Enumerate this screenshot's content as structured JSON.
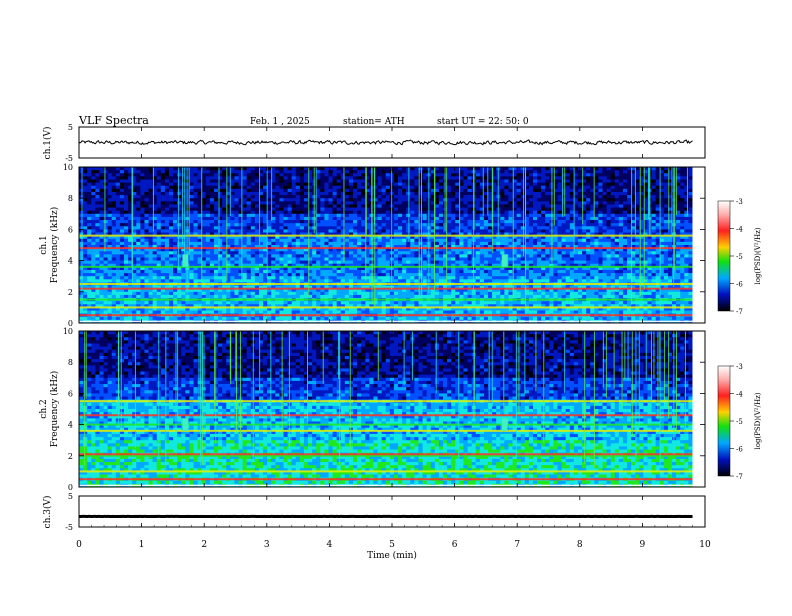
{
  "header": {
    "title": "VLF  Spectra",
    "date": "Feb. 1  , 2025",
    "station": "station= ATH",
    "start": "start  UT  =    22: 50: 0"
  },
  "colorbar": {
    "label": "log(PSD)(V²/Hz)",
    "ticks": [
      "-3",
      "-4",
      "-5",
      "-6",
      "-7"
    ],
    "colors": [
      "#ffffff",
      "#ff3030",
      "#ffd400",
      "#19e619",
      "#00a0ff",
      "#0010c8",
      "#000000"
    ]
  },
  "chart_data": [
    {
      "type": "line",
      "name": "ch1-waveform",
      "ylabel": "ch.1(V)",
      "ylim": [
        -5,
        5
      ],
      "y_ticks": [
        "5",
        "-5"
      ],
      "xlim": [
        0,
        10
      ],
      "x_data_range": [
        0,
        9.8
      ],
      "description_values": {
        "baseline": 0.0,
        "amplitude": 0.5
      }
    },
    {
      "type": "heatmap",
      "name": "ch1-spectrogram",
      "ylabel": "ch.1\nFrequency (kHz)",
      "ylim": [
        0,
        10
      ],
      "y_ticks": [
        "0",
        "2",
        "4",
        "6",
        "8",
        "10"
      ],
      "xlim": [
        0,
        10
      ],
      "x_data_range": [
        0,
        9.8
      ],
      "zlim": [
        -7,
        -3
      ],
      "zlabel": "log(PSD)(V²/Hz)",
      "bands_khz": [
        0.5,
        1.0,
        1.5,
        2.2,
        2.5,
        3.6,
        4.8,
        5.6
      ],
      "bursts_min": [
        1.7,
        6.8
      ]
    },
    {
      "type": "heatmap",
      "name": "ch2-spectrogram",
      "ylabel": "ch.2\nFrequency (kHz)",
      "ylim": [
        0,
        10
      ],
      "y_ticks": [
        "0",
        "2",
        "4",
        "6",
        "8",
        "10"
      ],
      "xlim": [
        0,
        10
      ],
      "x_data_range": [
        0,
        9.8
      ],
      "zlim": [
        -7,
        -3
      ],
      "zlabel": "log(PSD)(V²/Hz)",
      "bands_khz": [
        0.5,
        1.0,
        2.0,
        2.1,
        3.6,
        4.0,
        4.6,
        5.5
      ],
      "bursts_min": [
        1.7,
        6.8
      ]
    },
    {
      "type": "line",
      "name": "ch3-waveform",
      "ylabel": "ch.3(V)",
      "ylim": [
        -5,
        5
      ],
      "y_ticks": [
        "5",
        "-5"
      ],
      "xlim": [
        0,
        10
      ],
      "x_data_range": [
        0,
        9.8
      ],
      "description_values": {
        "baseline": -1.6,
        "amplitude": 0.05
      }
    }
  ],
  "x_axis": {
    "label": "Time  (min)",
    "ticks": [
      "0",
      "1",
      "2",
      "3",
      "4",
      "5",
      "6",
      "7",
      "8",
      "9",
      "10"
    ]
  }
}
